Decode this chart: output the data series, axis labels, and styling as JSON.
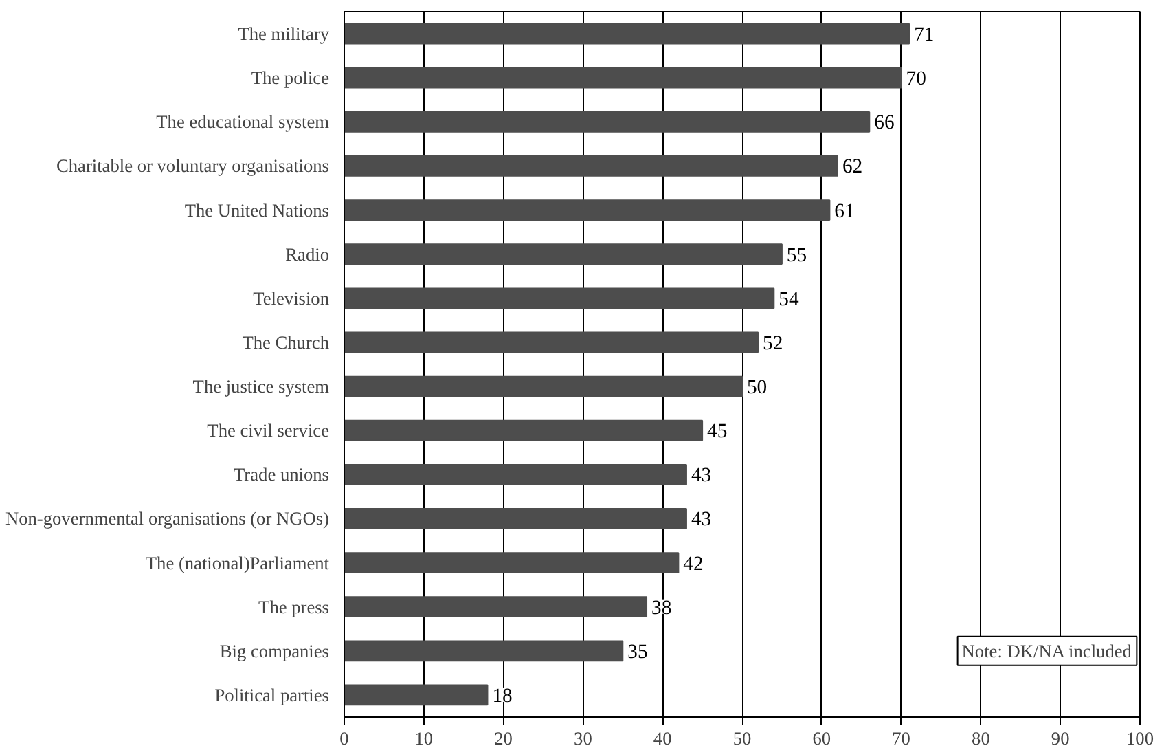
{
  "chart_data": {
    "type": "bar",
    "orientation": "horizontal",
    "categories": [
      "The military",
      "The police",
      "The educational system",
      "Charitable or voluntary organisations",
      "The United Nations",
      "Radio",
      "Television",
      "The Church",
      "The justice system",
      "The civil service",
      "Trade unions",
      "Non-governmental organisations (or NGOs)",
      "The (national)Parliament",
      "The press",
      "Big companies",
      "Political parties"
    ],
    "values": [
      71,
      70,
      66,
      62,
      61,
      55,
      54,
      52,
      50,
      45,
      43,
      43,
      42,
      38,
      35,
      18
    ],
    "color": "#4d4d4d",
    "data_labels": true,
    "xlim": [
      0,
      100
    ],
    "xticks": [
      0,
      10,
      20,
      30,
      40,
      50,
      60,
      70,
      80,
      90,
      100
    ],
    "grid": "x",
    "annotations": [
      "Note: DK/NA included"
    ]
  }
}
